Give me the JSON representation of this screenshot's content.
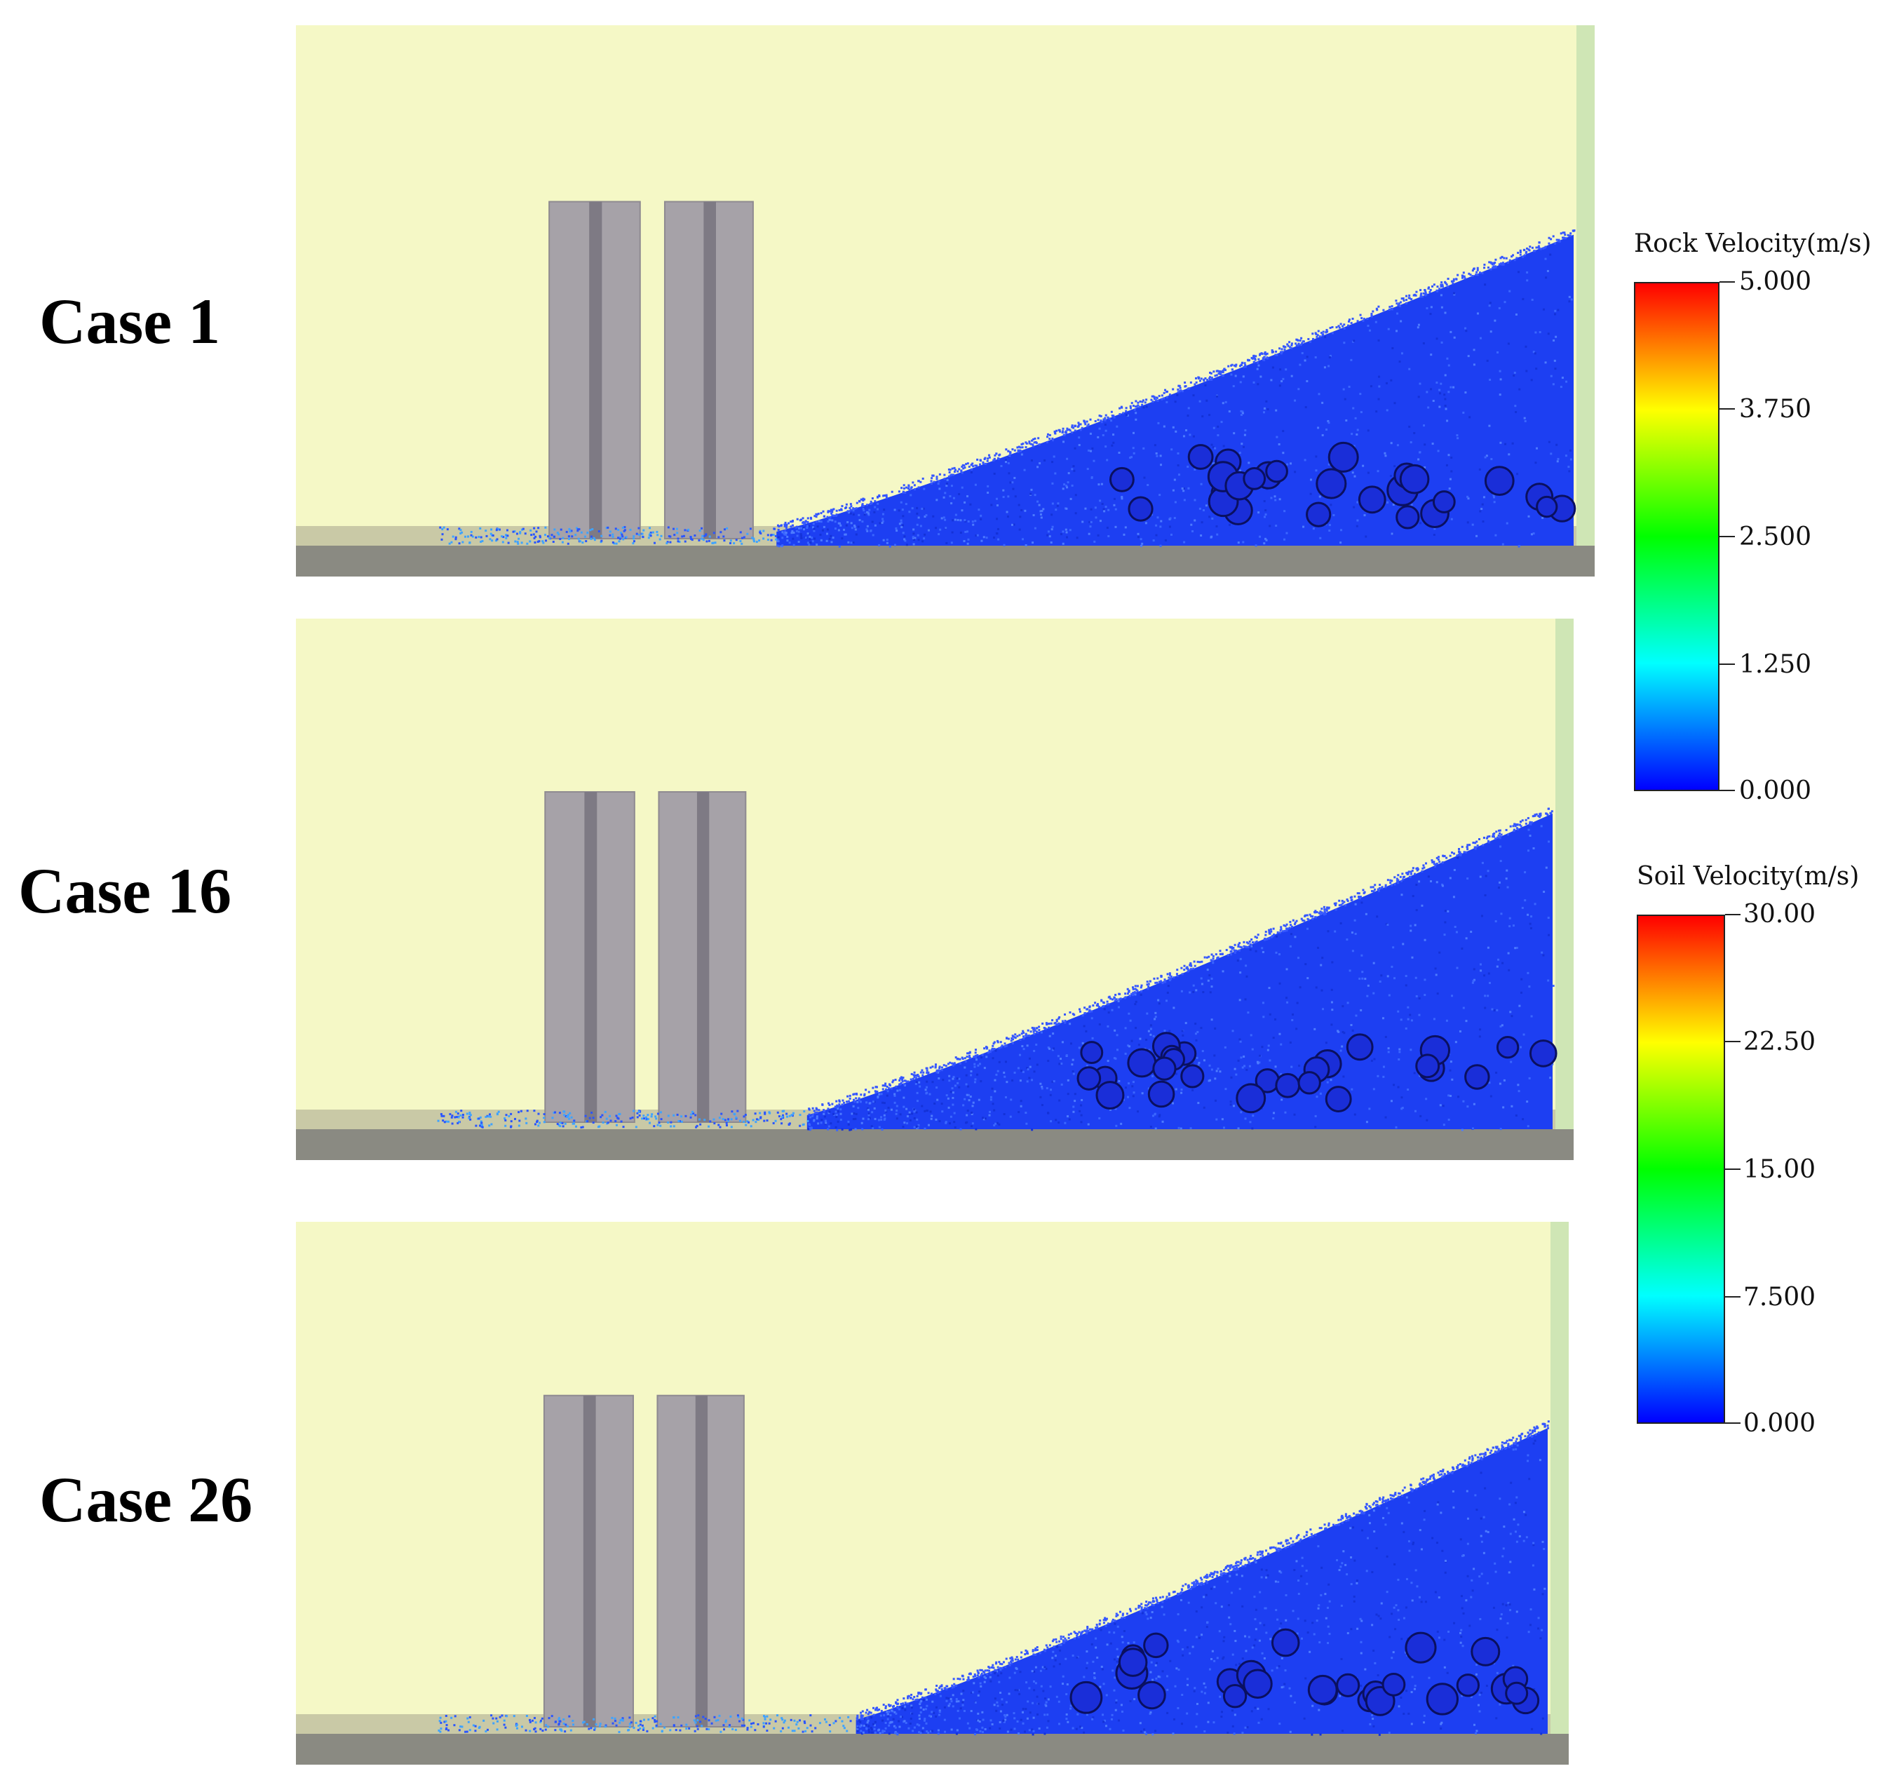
{
  "cases": [
    {
      "label": "Case 1"
    },
    {
      "label": "Case 16"
    },
    {
      "label": "Case 26"
    }
  ],
  "legends": {
    "rock": {
      "title": "Rock Velocity(m/s)",
      "ticks": [
        "5.000",
        "3.750",
        "2.500",
        "1.250",
        "0.000"
      ]
    },
    "soil": {
      "title": "Soil Velocity(m/s)",
      "ticks": [
        "30.00",
        "22.50",
        "15.00",
        "7.500",
        "0.000"
      ]
    }
  },
  "colors": {
    "background": "#f5f8c6",
    "buildings": "#a6a2a8",
    "ground": "#8a8a82",
    "wall": "#cfe6b5",
    "particles": "#1a3cf0"
  }
}
